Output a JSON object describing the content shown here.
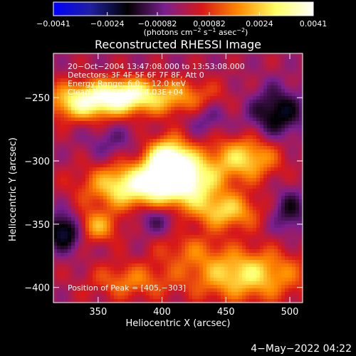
{
  "chart_data": {
    "type": "heatmap",
    "title": "Reconstructed RHESSI Image",
    "xlabel": "Heliocentric X (arcsec)",
    "ylabel": "Heliocentric Y (arcsec)",
    "xlim": [
      315,
      510
    ],
    "ylim": [
      -412,
      -215
    ],
    "x_ticks": [
      350,
      400,
      450,
      500
    ],
    "y_ticks": [
      -250,
      -300,
      -350,
      -400
    ],
    "x_tick_labels": [
      "350",
      "400",
      "450",
      "500"
    ],
    "y_tick_labels": [
      "−250",
      "−300",
      "−350",
      "−400"
    ],
    "colorbar": {
      "range": [
        -0.0041,
        0.0041
      ],
      "ticks": [
        -0.0041,
        -0.0024,
        -0.00082,
        0.00082,
        0.0024,
        0.0041
      ],
      "tick_labels": [
        "−0.0041",
        "−0.0024",
        "−0.00082",
        "0.00082",
        "0.0024",
        "0.0041"
      ],
      "unit_label": "(photons cm",
      "unit_exp1": "−2",
      "unit_mid": " s",
      "unit_exp2": "−1",
      "unit_mid2": " asec",
      "unit_exp3": "−2",
      "unit_end": ")",
      "colormap": [
        "#0000ff",
        "#2020a0",
        "#000000",
        "#7a1f8f",
        "#d81818",
        "#ff8c00",
        "#ffff66",
        "#ffffff"
      ]
    },
    "info_lines": [
      "20−Oct−2004 13:47:08.000 to 13:53:08.000",
      "Detectors: 3F 4F 5F 6F 7F 8F, Att 0",
      "Energy Range: 6.0 − 12.0 keV",
      "Clean     Total counts: 4.03E+04"
    ],
    "peak_label": "Position of Peak = [405,−303]",
    "peak_position": [
      405,
      -303
    ],
    "blobs": [
      {
        "x": 405,
        "y": -300,
        "value": 0.0041,
        "sx": 12,
        "sy": 12
      },
      {
        "x": 380,
        "y": -320,
        "value": 0.0036,
        "sx": 26,
        "sy": 12
      },
      {
        "x": 420,
        "y": -315,
        "value": 0.0032,
        "sx": 18,
        "sy": 14
      },
      {
        "x": 340,
        "y": -253,
        "value": 0.0035,
        "sx": 20,
        "sy": 10
      },
      {
        "x": 372,
        "y": -248,
        "value": 0.0028,
        "sx": 16,
        "sy": 9
      },
      {
        "x": 410,
        "y": -250,
        "value": 0.002,
        "sx": 24,
        "sy": 10
      },
      {
        "x": 465,
        "y": -298,
        "value": 0.0026,
        "sx": 18,
        "sy": 12
      },
      {
        "x": 450,
        "y": -340,
        "value": 0.0024,
        "sx": 18,
        "sy": 10
      },
      {
        "x": 345,
        "y": -352,
        "value": 0.0023,
        "sx": 14,
        "sy": 9
      },
      {
        "x": 465,
        "y": -390,
        "value": 0.0028,
        "sx": 30,
        "sy": 14
      },
      {
        "x": 375,
        "y": -395,
        "value": 0.0015,
        "sx": 22,
        "sy": 10
      },
      {
        "x": 420,
        "y": -370,
        "value": 0.001,
        "sx": 18,
        "sy": 10
      },
      {
        "x": 490,
        "y": -262,
        "value": -0.002,
        "sx": 15,
        "sy": 14
      },
      {
        "x": 325,
        "y": -355,
        "value": -0.003,
        "sx": 11,
        "sy": 10
      },
      {
        "x": 360,
        "y": -285,
        "value": -0.0008,
        "sx": 14,
        "sy": 10
      },
      {
        "x": 435,
        "y": -265,
        "value": -0.001,
        "sx": 12,
        "sy": 10
      },
      {
        "x": 395,
        "y": -345,
        "value": -0.0012,
        "sx": 12,
        "sy": 9
      },
      {
        "x": 500,
        "y": -340,
        "value": -0.0015,
        "sx": 10,
        "sy": 12
      }
    ]
  },
  "footer": {
    "date": "4−May−2022 04:22"
  }
}
